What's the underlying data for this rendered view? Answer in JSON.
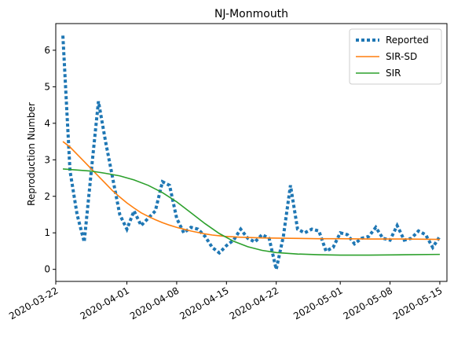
{
  "chart_data": {
    "type": "line",
    "title": "NJ-Monmouth",
    "xlabel": "",
    "ylabel": "Reproduction Number",
    "x_type": "date",
    "xlim": [
      "2020-03-22",
      "2020-05-16"
    ],
    "ylim": [
      -0.33,
      6.73
    ],
    "x_ticks": [
      "2020-03-22",
      "2020-04-01",
      "2020-04-08",
      "2020-04-15",
      "2020-04-22",
      "2020-05-01",
      "2020-05-08",
      "2020-05-15"
    ],
    "y_ticks": [
      0,
      1,
      2,
      3,
      4,
      5,
      6
    ],
    "grid": false,
    "legend_position": "top-right",
    "series": [
      {
        "name": "Reported",
        "style": "dotted",
        "color": "#1f77b4",
        "points": [
          [
            "2020-03-23",
            6.4
          ],
          [
            "2020-03-24",
            2.7
          ],
          [
            "2020-03-25",
            1.5
          ],
          [
            "2020-03-26",
            0.75
          ],
          [
            "2020-03-27",
            2.7
          ],
          [
            "2020-03-28",
            4.6
          ],
          [
            "2020-03-29",
            3.5
          ],
          [
            "2020-03-30",
            2.5
          ],
          [
            "2020-03-31",
            1.5
          ],
          [
            "2020-04-01",
            1.1
          ],
          [
            "2020-04-02",
            1.6
          ],
          [
            "2020-04-03",
            1.2
          ],
          [
            "2020-04-04",
            1.4
          ],
          [
            "2020-04-05",
            1.6
          ],
          [
            "2020-04-06",
            2.4
          ],
          [
            "2020-04-07",
            2.3
          ],
          [
            "2020-04-08",
            1.4
          ],
          [
            "2020-04-09",
            1.0
          ],
          [
            "2020-04-10",
            1.15
          ],
          [
            "2020-04-11",
            1.1
          ],
          [
            "2020-04-12",
            0.9
          ],
          [
            "2020-04-13",
            0.6
          ],
          [
            "2020-04-14",
            0.45
          ],
          [
            "2020-04-15",
            0.65
          ],
          [
            "2020-04-16",
            0.8
          ],
          [
            "2020-04-17",
            1.1
          ],
          [
            "2020-04-18",
            0.85
          ],
          [
            "2020-04-19",
            0.75
          ],
          [
            "2020-04-20",
            0.95
          ],
          [
            "2020-04-21",
            0.85
          ],
          [
            "2020-04-22",
            0.0
          ],
          [
            "2020-04-23",
            0.9
          ],
          [
            "2020-04-24",
            2.3
          ],
          [
            "2020-04-25",
            1.1
          ],
          [
            "2020-04-26",
            1.0
          ],
          [
            "2020-04-27",
            1.1
          ],
          [
            "2020-04-28",
            1.05
          ],
          [
            "2020-04-29",
            0.5
          ],
          [
            "2020-04-30",
            0.6
          ],
          [
            "2020-05-01",
            1.0
          ],
          [
            "2020-05-02",
            0.95
          ],
          [
            "2020-05-03",
            0.7
          ],
          [
            "2020-05-04",
            0.85
          ],
          [
            "2020-05-05",
            0.9
          ],
          [
            "2020-05-06",
            1.15
          ],
          [
            "2020-05-07",
            0.85
          ],
          [
            "2020-05-08",
            0.8
          ],
          [
            "2020-05-09",
            1.2
          ],
          [
            "2020-05-10",
            0.8
          ],
          [
            "2020-05-11",
            0.85
          ],
          [
            "2020-05-12",
            1.05
          ],
          [
            "2020-05-13",
            0.95
          ],
          [
            "2020-05-14",
            0.6
          ],
          [
            "2020-05-15",
            0.9
          ]
        ]
      },
      {
        "name": "SIR-SD",
        "style": "solid",
        "color": "#ff7f0e",
        "points": [
          [
            "2020-03-23",
            3.5
          ],
          [
            "2020-03-24",
            3.35
          ],
          [
            "2020-03-25",
            3.15
          ],
          [
            "2020-03-26",
            2.95
          ],
          [
            "2020-03-27",
            2.75
          ],
          [
            "2020-03-28",
            2.55
          ],
          [
            "2020-03-29",
            2.35
          ],
          [
            "2020-03-30",
            2.15
          ],
          [
            "2020-03-31",
            1.98
          ],
          [
            "2020-04-01",
            1.82
          ],
          [
            "2020-04-02",
            1.68
          ],
          [
            "2020-04-03",
            1.55
          ],
          [
            "2020-04-04",
            1.45
          ],
          [
            "2020-04-05",
            1.36
          ],
          [
            "2020-04-06",
            1.28
          ],
          [
            "2020-04-07",
            1.21
          ],
          [
            "2020-04-08",
            1.15
          ],
          [
            "2020-04-09",
            1.1
          ],
          [
            "2020-04-10",
            1.05
          ],
          [
            "2020-04-11",
            1.01
          ],
          [
            "2020-04-12",
            0.97
          ],
          [
            "2020-04-13",
            0.94
          ],
          [
            "2020-04-14",
            0.92
          ],
          [
            "2020-04-15",
            0.9
          ],
          [
            "2020-04-17",
            0.88
          ],
          [
            "2020-04-20",
            0.86
          ],
          [
            "2020-04-24",
            0.85
          ],
          [
            "2020-04-28",
            0.84
          ],
          [
            "2020-05-01",
            0.84
          ],
          [
            "2020-05-05",
            0.83
          ],
          [
            "2020-05-10",
            0.83
          ],
          [
            "2020-05-15",
            0.82
          ]
        ]
      },
      {
        "name": "SIR",
        "style": "solid",
        "color": "#2ca02c",
        "points": [
          [
            "2020-03-23",
            2.75
          ],
          [
            "2020-03-25",
            2.72
          ],
          [
            "2020-03-27",
            2.69
          ],
          [
            "2020-03-29",
            2.63
          ],
          [
            "2020-03-31",
            2.56
          ],
          [
            "2020-04-02",
            2.45
          ],
          [
            "2020-04-04",
            2.3
          ],
          [
            "2020-04-06",
            2.1
          ],
          [
            "2020-04-08",
            1.85
          ],
          [
            "2020-04-10",
            1.55
          ],
          [
            "2020-04-12",
            1.25
          ],
          [
            "2020-04-14",
            0.98
          ],
          [
            "2020-04-16",
            0.77
          ],
          [
            "2020-04-18",
            0.62
          ],
          [
            "2020-04-20",
            0.52
          ],
          [
            "2020-04-22",
            0.46
          ],
          [
            "2020-04-25",
            0.42
          ],
          [
            "2020-04-28",
            0.4
          ],
          [
            "2020-05-01",
            0.39
          ],
          [
            "2020-05-05",
            0.39
          ],
          [
            "2020-05-10",
            0.4
          ],
          [
            "2020-05-15",
            0.41
          ]
        ]
      }
    ]
  }
}
